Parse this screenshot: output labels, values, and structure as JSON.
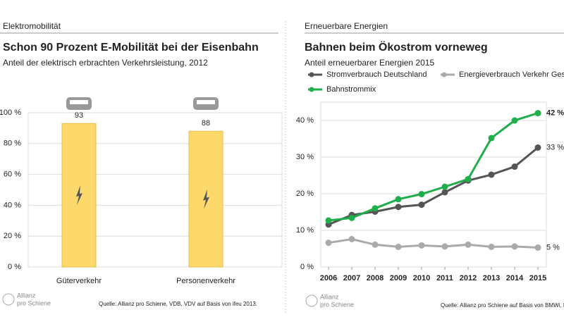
{
  "logo": [
    "Allianz",
    "pro Schiene"
  ],
  "chart_data": [
    {
      "type": "bar",
      "section": "Elektromobilität",
      "title": "Schon 90 Prozent E-Mobilität bei der Eisenbahn",
      "subtitle": "Anteil der elektrisch erbrachten Verkehrsleistung, 2012",
      "categories": [
        "Güterverkehr",
        "Personenverkehr"
      ],
      "values": [
        93,
        88
      ],
      "color": "#fcd96a",
      "ylim": [
        0,
        100
      ],
      "yticks": [
        {
          "value": 0,
          "label": "0 %"
        },
        {
          "value": 20,
          "label": "20 %"
        },
        {
          "value": 40,
          "label": "40 %"
        },
        {
          "value": 60,
          "label": "60 %"
        },
        {
          "value": 80,
          "label": "80 %"
        },
        {
          "value": 100,
          "label": "100 %"
        }
      ],
      "grid": true,
      "source": "Quelle: Allianz pro Schiene, VDB, VDV auf Basis von ifeu 2013."
    },
    {
      "type": "line",
      "section": "Erneuerbare Energien",
      "title": "Bahnen beim Ökostrom vorneweg",
      "subtitle": "Anteil erneuerbarer Energien 2015",
      "x": [
        2006,
        2007,
        2008,
        2009,
        2010,
        2011,
        2012,
        2013,
        2014,
        2015
      ],
      "xlim": [
        2006,
        2015
      ],
      "xticks": [
        2006,
        2007,
        2008,
        2009,
        2010,
        2011,
        2012,
        2013,
        2014,
        2015
      ],
      "ylim": [
        0,
        45
      ],
      "yticks": [
        {
          "value": 0,
          "label": "0 %"
        },
        {
          "value": 10,
          "label": "10 %"
        },
        {
          "value": 20,
          "label": "20 %"
        },
        {
          "value": 30,
          "label": "30 %"
        },
        {
          "value": 40,
          "label": "40 %"
        }
      ],
      "grid": true,
      "series": [
        {
          "name": "Stromverbrauch Deutschland",
          "color": "#555555",
          "values": [
            11.6,
            14.2,
            15.1,
            16.4,
            17.0,
            20.4,
            23.6,
            25.2,
            27.4,
            32.6
          ],
          "value_labels": [
            null,
            null,
            null,
            null,
            null,
            null,
            null,
            null,
            null,
            "33 %"
          ]
        },
        {
          "name": "Energieverbrauch Verkehr Gesamt",
          "color": "#aaaaaa",
          "values": [
            6.6,
            7.6,
            6.1,
            5.5,
            5.9,
            5.6,
            6.1,
            5.5,
            5.6,
            5.3
          ],
          "value_labels": [
            null,
            null,
            null,
            null,
            null,
            null,
            null,
            null,
            null,
            "5 %"
          ]
        },
        {
          "name": "Bahnstrommix",
          "color": "#1fae4b",
          "values": [
            12.7,
            13.4,
            16.0,
            18.5,
            19.9,
            21.9,
            24.0,
            35.2,
            40.0,
            42.0
          ],
          "value_labels": [
            null,
            null,
            null,
            null,
            null,
            null,
            null,
            null,
            null,
            "42 %"
          ]
        }
      ],
      "source": "Quelle: Allianz pro Schiene auf Basis von BMWi, Deutsche Bahn"
    }
  ]
}
